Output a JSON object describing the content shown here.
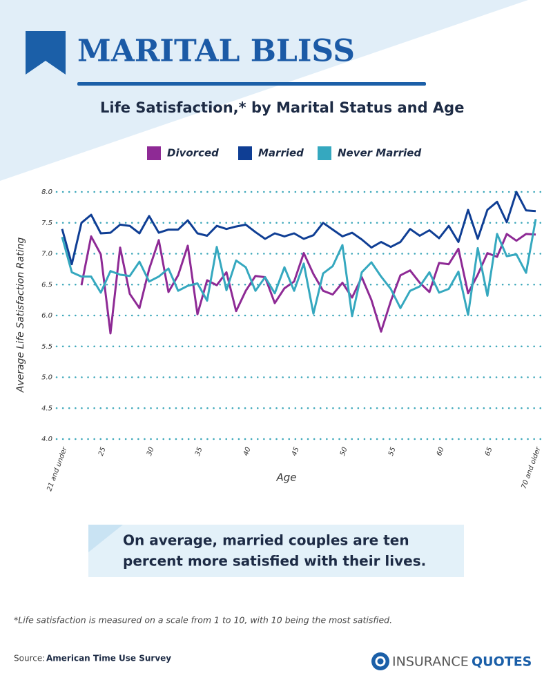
{
  "header": {
    "title": "MARITAL BLISS",
    "subtitle": "Life Satisfaction,* by Marital Status and Age"
  },
  "chart_data": {
    "type": "line",
    "ylabel": "Average Life Satisfaction Rating",
    "xlabel": "Age",
    "x": [
      21,
      22,
      23,
      24,
      25,
      26,
      27,
      28,
      29,
      30,
      31,
      32,
      33,
      34,
      35,
      36,
      37,
      38,
      39,
      40,
      41,
      42,
      43,
      44,
      45,
      46,
      47,
      48,
      49,
      50,
      51,
      52,
      53,
      54,
      55,
      56,
      57,
      58,
      59,
      60,
      61,
      62,
      63,
      64,
      65,
      66,
      67,
      68,
      69,
      70
    ],
    "xlim": [
      21,
      70
    ],
    "xticks": [
      {
        "value": 21,
        "label": "21 and under"
      },
      25,
      30,
      35,
      40,
      45,
      50,
      55,
      60,
      65,
      {
        "value": 70,
        "label": "70 and older"
      }
    ],
    "ylim": [
      4,
      8
    ],
    "yticks": [
      {
        "value": 4,
        "label": "4.0"
      },
      4.5,
      {
        "value": 5,
        "label": "5.0"
      },
      5.5,
      {
        "value": 6,
        "label": "6.0"
      },
      6.5,
      {
        "value": 7,
        "label": "7.0"
      },
      7.5,
      {
        "value": 8,
        "label": "8.0"
      }
    ],
    "grid": true,
    "series": [
      {
        "name": "Divorced",
        "color": "#8e2a95",
        "values": [
          null,
          null,
          6.49,
          7.28,
          6.99,
          5.71,
          7.1,
          6.35,
          6.12,
          6.75,
          7.22,
          6.38,
          6.65,
          7.13,
          6.02,
          6.57,
          6.49,
          6.7,
          6.07,
          6.4,
          6.64,
          6.62,
          6.2,
          6.44,
          6.55,
          7.01,
          6.67,
          6.4,
          6.34,
          6.53,
          6.29,
          6.62,
          6.25,
          5.74,
          6.23,
          6.65,
          6.73,
          6.53,
          6.38,
          6.85,
          6.83,
          7.08,
          6.36,
          6.66,
          7.01,
          6.95,
          7.32,
          7.21,
          7.32,
          7.31
        ]
      },
      {
        "name": "Married",
        "color": "#0f3e94",
        "values": [
          7.4,
          6.83,
          7.5,
          7.63,
          7.33,
          7.34,
          7.47,
          7.45,
          7.33,
          7.61,
          7.34,
          7.39,
          7.39,
          7.54,
          7.33,
          7.29,
          7.45,
          7.4,
          7.44,
          7.47,
          7.35,
          7.24,
          7.33,
          7.28,
          7.33,
          7.24,
          7.3,
          7.5,
          7.39,
          7.28,
          7.34,
          7.23,
          7.1,
          7.19,
          7.11,
          7.19,
          7.4,
          7.29,
          7.38,
          7.25,
          7.45,
          7.19,
          7.71,
          7.24,
          7.71,
          7.84,
          7.51,
          8.0,
          7.7,
          7.69
        ]
      },
      {
        "name": "Never Married",
        "color": "#35a8bf",
        "values": [
          7.27,
          6.7,
          6.63,
          6.63,
          6.37,
          6.72,
          6.66,
          6.64,
          6.87,
          6.55,
          6.63,
          6.76,
          6.4,
          6.48,
          6.52,
          6.24,
          7.11,
          6.41,
          6.89,
          6.78,
          6.4,
          6.62,
          6.36,
          6.78,
          6.4,
          6.84,
          6.03,
          6.68,
          6.8,
          7.14,
          5.99,
          6.7,
          6.86,
          6.63,
          6.43,
          6.12,
          6.4,
          6.47,
          6.7,
          6.37,
          6.43,
          6.71,
          6.01,
          7.09,
          6.32,
          7.32,
          6.96,
          6.99,
          6.69,
          7.56
        ]
      }
    ]
  },
  "callout": [
    "On average, married couples are ten",
    "percent more satisfied with their lives."
  ],
  "footnote": "*Life satisfaction is measured on a scale from 1 to 10, with 10 being the most satisfied.",
  "source": {
    "label": "Source:",
    "name": "American Time Use Survey"
  },
  "logo": {
    "part1": "INSURANCE",
    "part2": "QUOTES"
  }
}
